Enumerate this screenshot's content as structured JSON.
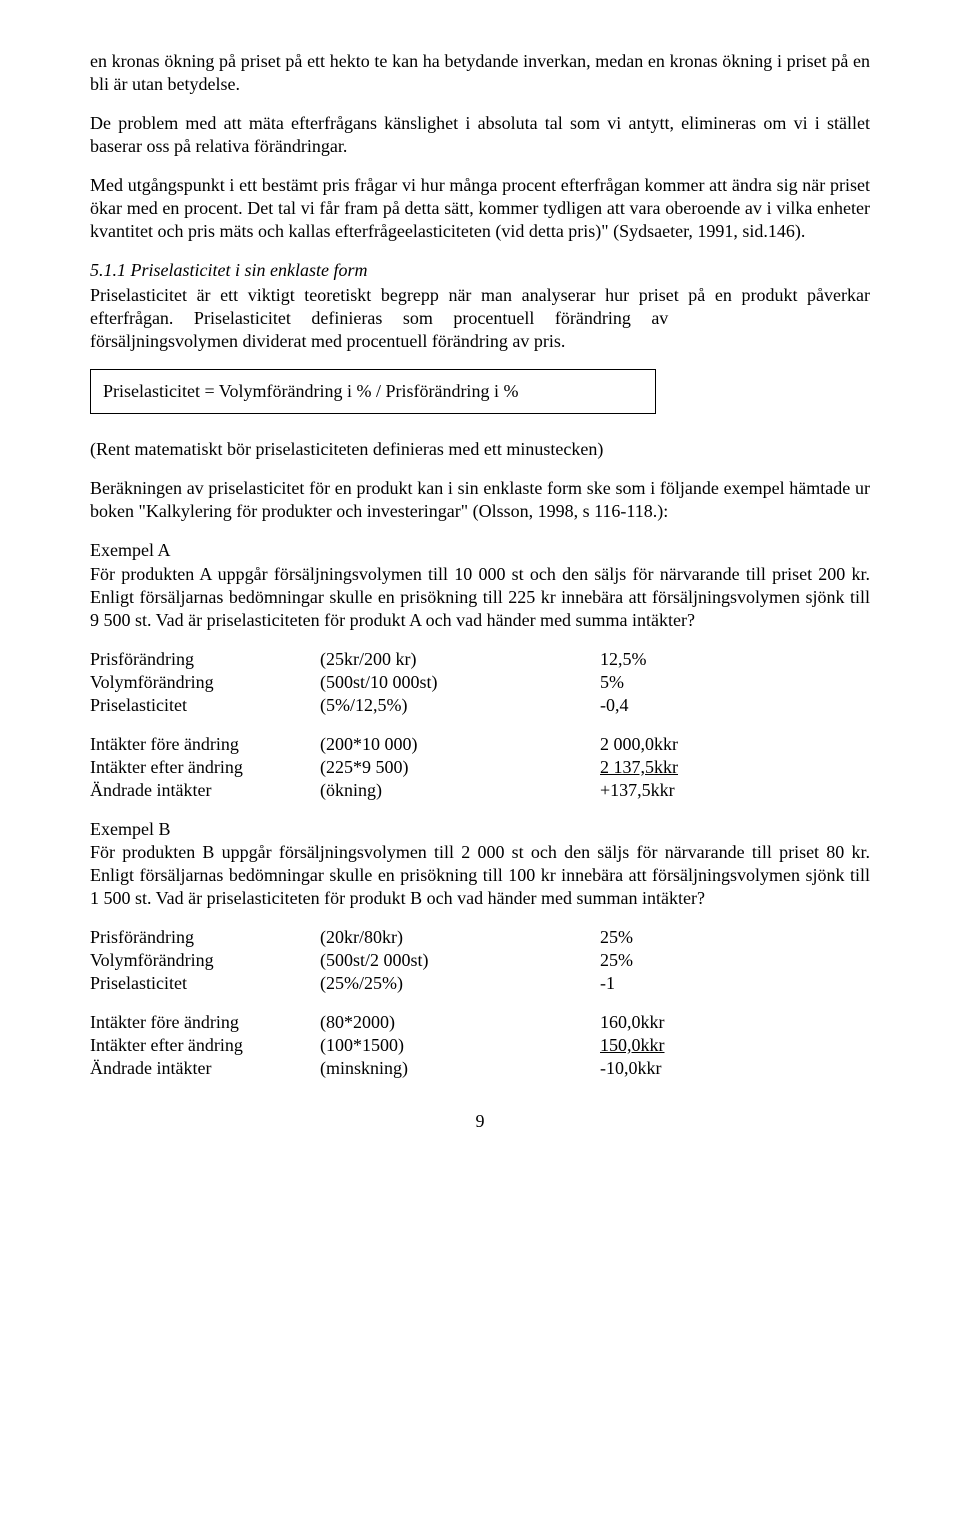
{
  "paragraphs": {
    "p1": "en kronas ökning på priset på ett hekto te kan ha betydande inverkan, medan en kronas ökning i priset på en bli är utan betydelse.",
    "p2": "De problem med att mäta efterfrågans känslighet i absoluta tal som vi antytt, elimineras om vi i stället baserar oss på relativa förändringar.",
    "p3": "Med utgångspunkt i ett bestämt pris frågar vi hur många procent efterfrågan kommer att ändra sig när priset ökar med en procent. Det tal vi får fram på detta sätt, kommer tydligen att vara oberoende av i vilka enheter kvantitet och pris mäts och kallas efterfrågeelasticiteten (vid detta pris)\" (Sydsaeter, 1991, sid.146).",
    "heading_5_1_1": "5.1.1 Priselasticitet i sin enklaste form",
    "p4a": "Priselasticitet är ett viktigt teoretiskt begrepp när man analyserar hur priset på en produkt ",
    "p4b_prefix": "påverkar",
    "p4b_mid_spaced": "efterfrågan. Priselasticitet definieras som procentuell förändring av",
    "p4c": "försäljningsvolymen dividerat med procentuell förändring av pris.",
    "formula": "Priselasticitet = Volymförändring i % / Prisförändring i %",
    "paren_note": "(Rent matematiskt bör priselasticiteten definieras med ett minustecken)",
    "p5": "Beräkningen av priselasticitet för en produkt kan i sin enklaste form ske som i följande exempel hämtade ur boken \"Kalkylering för produkter och investeringar\" (Olsson, 1998, s 116-118.):"
  },
  "exampleA": {
    "title": "Exempel A",
    "intro": "För produkten A uppgår försäljningsvolymen till 10 000 st och den säljs för närvarande till priset 200 kr. Enligt försäljarnas bedömningar skulle en prisökning till 225 kr innebära att försäljningsvolymen sjönk till 9 500 st. Vad är priselasticiteten för produkt A och vad händer med summa intäkter?",
    "rows1": [
      {
        "label": "Prisförändring",
        "calc": "(25kr/200 kr)",
        "val": "12,5%"
      },
      {
        "label": "Volymförändring",
        "calc": "(500st/10 000st)",
        "val": "5%"
      },
      {
        "label": "Priselasticitet",
        "calc": "(5%/12,5%)",
        "val": "-0,4"
      }
    ],
    "rows2": [
      {
        "label": "Intäkter före ändring",
        "calc": "(200*10 000)",
        "val": "2 000,0kkr",
        "u": false
      },
      {
        "label": "Intäkter efter ändring",
        "calc": "(225*9 500)",
        "val": "2 137,5kkr",
        "u": true
      },
      {
        "label": "Ändrade intäkter",
        "calc": "(ökning)",
        "val": "+137,5kkr",
        "u": false
      }
    ]
  },
  "exampleB": {
    "title": "Exempel B",
    "intro": "För produkten B uppgår försäljningsvolymen till 2 000 st och den säljs för närvarande till priset 80 kr. Enligt försäljarnas bedömningar skulle en prisökning till 100 kr innebära att försäljningsvolymen sjönk till 1 500 st. Vad är priselasticiteten för produkt B och vad händer med summan intäkter?",
    "rows1": [
      {
        "label": "Prisförändring",
        "calc": "(20kr/80kr)",
        "val": "25%"
      },
      {
        "label": "Volymförändring",
        "calc": "(500st/2 000st)",
        "val": "25%"
      },
      {
        "label": "Priselasticitet",
        "calc": "(25%/25%)",
        "val": "-1"
      }
    ],
    "rows2": [
      {
        "label": "Intäkter före ändring",
        "calc": "(80*2000)",
        "val": "160,0kkr",
        "u": false
      },
      {
        "label": "Intäkter efter ändring",
        "calc": "(100*1500)",
        "val": "150,0kkr",
        "u": true
      },
      {
        "label": "Ändrade intäkter",
        "calc": "(minskning)",
        "val": "-10,0kkr",
        "u": false
      }
    ]
  },
  "page_number": "9"
}
